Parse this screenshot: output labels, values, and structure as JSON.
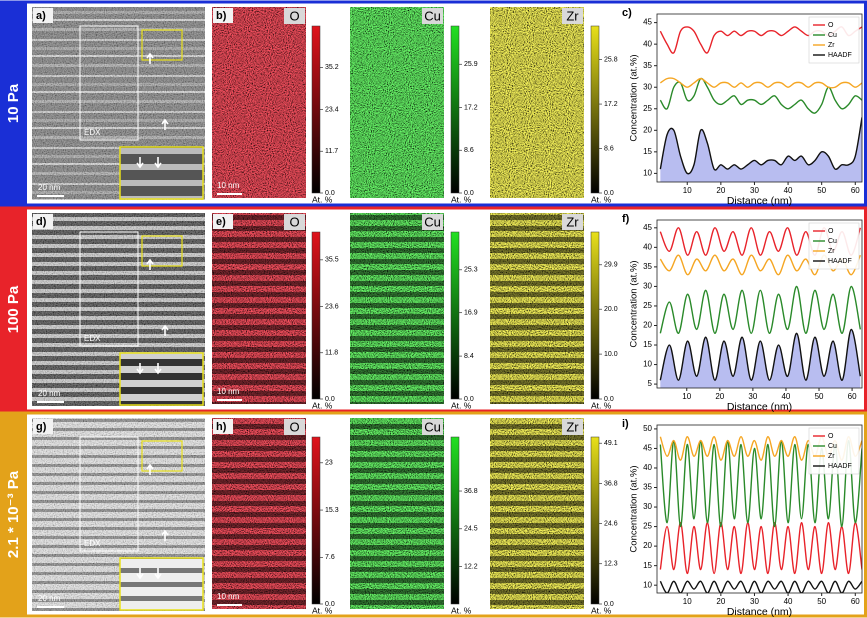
{
  "rows": [
    {
      "label": "10 Pa",
      "color": "#1a2fd6",
      "image": {
        "panel_label": "a)",
        "box_label": "EDX",
        "scale_bar": "20 nm"
      },
      "maps": [
        {
          "panel_label": "b)",
          "element": "O",
          "color": "#e0141c",
          "scale_bar": "10 nm",
          "colorbar": {
            "lim": [
              0,
              46.8
            ],
            "ticks": [
              35.2,
              23.4,
              11.7,
              {
                "value": 0,
                "label": "0.0"
              }
            ],
            "unit_label": "At. %"
          }
        },
        {
          "element": "Cu",
          "color": "#22e022",
          "colorbar": {
            "lim": [
              0,
              33.6
            ],
            "ticks": [
              25.9,
              17.2,
              8.6,
              {
                "value": 0,
                "label": "0.0"
              }
            ],
            "unit_label": "At. %"
          }
        },
        {
          "element": "Zr",
          "color": "#e8e01a",
          "colorbar": {
            "lim": [
              0,
              32.3
            ],
            "ticks": [
              25.8,
              17.2,
              8.6,
              {
                "value": 0,
                "label": "0.0"
              }
            ],
            "unit_label": "At. %"
          }
        }
      ]
    },
    {
      "label": "100 Pa",
      "color": "#e8232a",
      "image": {
        "panel_label": "d)",
        "box_label": "EDX",
        "scale_bar": "20 nm"
      },
      "maps": [
        {
          "panel_label": "e)",
          "element": "O",
          "color": "#e0141c",
          "scale_bar": "10 nm",
          "colorbar": {
            "lim": [
              0,
              42.6
            ],
            "ticks": [
              35.5,
              23.6,
              11.8,
              {
                "value": 0,
                "label": "0.0"
              }
            ],
            "unit_label": "At. %"
          }
        },
        {
          "element": "Cu",
          "color": "#22e022",
          "colorbar": {
            "lim": [
              0,
              32.7
            ],
            "ticks": [
              25.3,
              16.9,
              8.4,
              {
                "value": 0,
                "label": "0.0"
              }
            ],
            "unit_label": "At. %"
          }
        },
        {
          "element": "Zr",
          "color": "#e8e01a",
          "colorbar": {
            "lim": [
              0,
              37.2
            ],
            "ticks": [
              29.9,
              {
                "value": 20,
                "label": "20.0"
              },
              {
                "value": 10,
                "label": "10.0"
              },
              {
                "value": 0,
                "label": "0.0"
              }
            ],
            "unit_label": "At. %"
          }
        }
      ]
    },
    {
      "label": "2.1 * 10⁻³ Pa",
      "color": "#e3a21a",
      "image": {
        "panel_label": "g)",
        "box_label": "EDX",
        "scale_bar": "20 nm"
      },
      "maps": [
        {
          "panel_label": "h)",
          "element": "O",
          "color": "#e0141c",
          "scale_bar": "10 nm",
          "colorbar": {
            "lim": [
              0,
              27.2
            ],
            "ticks": [
              23.0,
              15.3,
              7.6,
              {
                "value": 0,
                "label": "0.0"
              }
            ],
            "unit_label": "At. %"
          }
        },
        {
          "element": "Cu",
          "color": "#22e022",
          "colorbar": {
            "lim": [
              0,
              54.4
            ],
            "ticks": [
              36.8,
              24.5,
              12.2
            ],
            "unit_label": "At. %"
          }
        },
        {
          "element": "Zr",
          "color": "#e8e01a",
          "colorbar": {
            "lim": [
              0,
              51
            ],
            "ticks": [
              49.1,
              36.8,
              24.6,
              12.3,
              {
                "value": 0,
                "label": "0.0"
              }
            ],
            "unit_label": "At. %"
          }
        }
      ]
    }
  ],
  "chart_data": [
    {
      "type": "line",
      "panel_label": "c)",
      "xlabel": "Distance (nm)",
      "ylabel": "Concentration (at.%)",
      "legend": "upper right",
      "x": [
        2,
        4,
        6,
        8,
        10,
        12,
        14,
        16,
        18,
        20,
        22,
        24,
        26,
        28,
        30,
        32,
        34,
        36,
        38,
        40,
        42,
        44,
        46,
        48,
        50,
        52,
        54,
        56,
        58,
        60,
        62
      ],
      "xlim": [
        1,
        62
      ],
      "xticks": [
        10,
        20,
        30,
        40,
        50,
        60
      ],
      "ylim": [
        8,
        47
      ],
      "yticks": [
        10,
        15,
        20,
        25,
        30,
        35,
        40,
        45
      ],
      "series": [
        {
          "name": "O",
          "color": "#e8232a",
          "values": [
            43,
            40,
            38,
            43,
            44,
            43,
            40,
            38,
            42,
            43,
            42,
            43,
            42,
            43,
            43,
            42,
            43,
            43,
            42,
            43,
            44,
            43,
            42,
            43,
            43,
            42,
            43,
            44,
            42,
            43,
            44
          ]
        },
        {
          "name": "Cu",
          "color": "#2a8a2a",
          "values": [
            27,
            25,
            30,
            31,
            27,
            28,
            32,
            30,
            27,
            26,
            27,
            28,
            26,
            27,
            27,
            26,
            27,
            28,
            26,
            25,
            26,
            27,
            25,
            24,
            26,
            30,
            27,
            25,
            26,
            28,
            27
          ]
        },
        {
          "name": "Zr",
          "color": "#f5a623",
          "values": [
            31,
            32,
            32,
            31,
            30,
            31,
            32,
            31,
            30,
            31,
            31,
            30,
            31,
            30,
            31,
            31,
            30,
            31,
            31,
            30,
            31,
            31,
            30,
            31,
            31,
            30,
            30,
            31,
            31,
            30,
            31
          ]
        },
        {
          "name": "HAADF",
          "color": "#111111",
          "fill_color": "#b8bdf0",
          "values": [
            11,
            19,
            20,
            14,
            10,
            12,
            20,
            17,
            11,
            12,
            11,
            12,
            11,
            12,
            13,
            12,
            13,
            13,
            12,
            14,
            13,
            14,
            12,
            13,
            15,
            14,
            11,
            12,
            12,
            14,
            23
          ]
        }
      ]
    },
    {
      "type": "line",
      "panel_label": "f)",
      "xlabel": "Distance (nm)",
      "ylabel": "Concentration (at.%)",
      "legend": "upper right",
      "x": [
        2,
        4.75,
        7.5,
        10.25,
        13,
        15.75,
        18.5,
        21.25,
        24,
        26.75,
        29.5,
        32.25,
        35,
        37.75,
        40.5,
        43.25,
        46,
        48.75,
        51.5,
        54.25,
        57,
        59.75,
        62.5
      ],
      "xlim": [
        1,
        63
      ],
      "xticks": [
        10,
        20,
        30,
        40,
        50,
        60
      ],
      "ylim": [
        4,
        47
      ],
      "yticks": [
        5,
        10,
        15,
        20,
        25,
        30,
        35,
        40,
        45
      ],
      "series": [
        {
          "name": "O",
          "color": "#e8232a",
          "values": [
            44,
            39,
            45,
            38,
            44,
            38,
            45,
            39,
            44,
            38,
            45,
            38,
            44,
            39,
            45,
            38,
            44,
            38,
            45,
            39,
            44,
            38,
            45
          ]
        },
        {
          "name": "Cu",
          "color": "#2a8a2a",
          "values": [
            18,
            26,
            18,
            28,
            19,
            29,
            18,
            28,
            19,
            29,
            18,
            29,
            18,
            28,
            19,
            30,
            18,
            29,
            19,
            28,
            18,
            30,
            19
          ]
        },
        {
          "name": "Zr",
          "color": "#f5a623",
          "values": [
            37,
            34,
            38,
            33,
            37,
            34,
            38,
            34,
            37,
            33,
            38,
            34,
            37,
            33,
            38,
            34,
            37,
            33,
            38,
            34,
            37,
            33,
            38
          ]
        },
        {
          "name": "HAADF",
          "color": "#111111",
          "fill_color": "#b8bdf0",
          "values": [
            6,
            15,
            6,
            16,
            7,
            17,
            6,
            16,
            7,
            17,
            6,
            16,
            6,
            15,
            7,
            18,
            6,
            17,
            7,
            16,
            6,
            19,
            7
          ]
        }
      ]
    },
    {
      "type": "line",
      "panel_label": "i)",
      "xlabel": "Distance (nm)",
      "ylabel": "Concentration (at.%)",
      "legend": "upper right",
      "x": [
        2,
        4,
        6,
        8,
        10,
        12,
        14,
        16,
        18,
        20,
        22,
        24,
        26,
        28,
        30,
        32,
        34,
        36,
        38,
        40,
        42,
        44,
        46,
        48,
        50,
        52,
        54,
        56,
        58,
        60,
        62
      ],
      "xlim": [
        1,
        62
      ],
      "xticks": [
        10,
        20,
        30,
        40,
        50,
        60
      ],
      "ylim": [
        8,
        51
      ],
      "yticks": [
        10,
        15,
        20,
        25,
        30,
        35,
        40,
        45,
        50
      ],
      "series": [
        {
          "name": "O",
          "color": "#e8232a",
          "values": [
            14,
            25,
            14,
            26,
            13,
            25,
            14,
            26,
            13,
            26,
            14,
            25,
            13,
            26,
            14,
            25,
            13,
            26,
            14,
            25,
            13,
            26,
            14,
            25,
            13,
            26,
            14,
            25,
            13,
            26,
            14
          ]
        },
        {
          "name": "Cu",
          "color": "#2a8a2a",
          "values": [
            46,
            26,
            47,
            25,
            46,
            27,
            47,
            26,
            46,
            25,
            47,
            27,
            46,
            26,
            45,
            27,
            46,
            25,
            47,
            26,
            46,
            27,
            46,
            26,
            45,
            27,
            46,
            25,
            47,
            26,
            45
          ]
        },
        {
          "name": "Zr",
          "color": "#f5a623",
          "values": [
            48,
            43,
            47,
            42,
            48,
            43,
            47,
            43,
            48,
            42,
            47,
            43,
            48,
            43,
            47,
            42,
            48,
            43,
            47,
            43,
            48,
            42,
            47,
            43,
            48,
            43,
            47,
            42,
            48,
            43,
            47
          ]
        },
        {
          "name": "HAADF",
          "color": "#111111",
          "values": [
            11,
            8,
            11,
            8,
            11,
            9,
            11,
            8,
            11,
            8,
            11,
            9,
            11,
            8,
            11,
            8,
            11,
            9,
            11,
            8,
            11,
            8,
            11,
            9,
            11,
            8,
            11,
            8,
            11,
            9,
            11
          ]
        }
      ]
    }
  ]
}
